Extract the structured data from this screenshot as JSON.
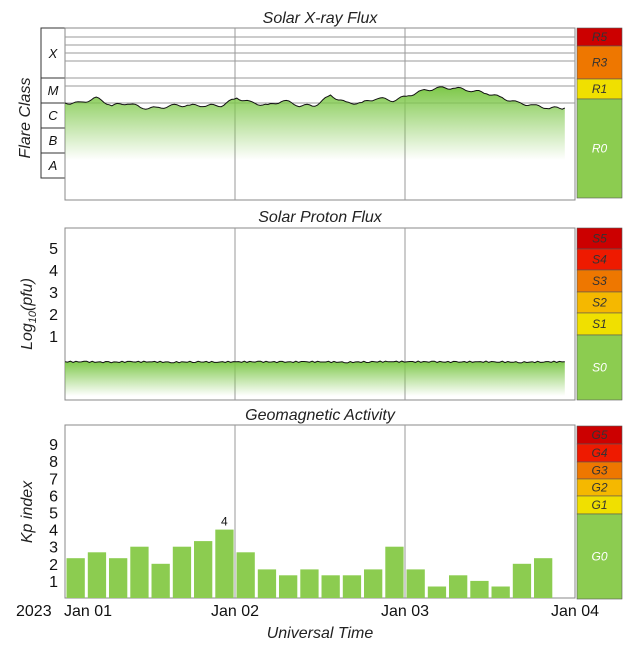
{
  "xray": {
    "title": "Solar X-ray Flux",
    "ylabel": "Flare Class",
    "classes": [
      "X",
      "M",
      "C",
      "B",
      "A"
    ],
    "scale": [
      {
        "label": "R5",
        "color": "#cc0000"
      },
      {
        "label": "R3",
        "color": "#ee7700"
      },
      {
        "label": "R1",
        "color": "#f0e000"
      },
      {
        "label": "R0",
        "color": "#8ccc50"
      }
    ]
  },
  "proton": {
    "title": "Solar Proton Flux",
    "ylabel_main": "Log",
    "ylabel_sub": "10",
    "ylabel_tail": "(pfu)",
    "ticks": [
      "5",
      "4",
      "3",
      "2",
      "1"
    ],
    "scale": [
      {
        "label": "S5",
        "color": "#cc0000"
      },
      {
        "label": "S4",
        "color": "#ee1a00"
      },
      {
        "label": "S3",
        "color": "#ee7700"
      },
      {
        "label": "S2",
        "color": "#f5b800"
      },
      {
        "label": "S1",
        "color": "#f0e000"
      },
      {
        "label": "S0",
        "color": "#8ccc50"
      }
    ]
  },
  "geomag": {
    "title": "Geomagnetic Activity",
    "ylabel": "Kp index",
    "ticks": [
      "9",
      "8",
      "7",
      "6",
      "5",
      "4",
      "3",
      "2",
      "1"
    ],
    "scale": [
      {
        "label": "G5",
        "color": "#cc0000"
      },
      {
        "label": "G4",
        "color": "#ee1a00"
      },
      {
        "label": "G3",
        "color": "#ee7700"
      },
      {
        "label": "G2",
        "color": "#f5b800"
      },
      {
        "label": "G1",
        "color": "#f0e000"
      },
      {
        "label": "G0",
        "color": "#8ccc50"
      }
    ]
  },
  "xaxis": {
    "year": "2023",
    "ticks": [
      "Jan 01",
      "Jan 02",
      "Jan 03",
      "Jan 04"
    ],
    "label": "Universal Time"
  },
  "chart_data": [
    {
      "type": "area",
      "title": "Solar X-ray Flux",
      "ylabel": "Flare Class",
      "yscale": "log",
      "x_range": [
        "2023-01-01",
        "2023-01-03T23:00"
      ],
      "series": [
        {
          "values": [
            2.0,
            2.0,
            2.2,
            1.9,
            2.0,
            1.8,
            1.8,
            1.9,
            1.9,
            1.9,
            1.9,
            2.2,
            2.0,
            1.9,
            2.1,
            1.9,
            1.9,
            2.3,
            2.0,
            2.0,
            2.2,
            2.1,
            2.3,
            2.5,
            2.6,
            2.6,
            2.5,
            2.4,
            2.2,
            2.0,
            1.9,
            1.8,
            1.8
          ]
        }
      ]
    },
    {
      "type": "area",
      "title": "Solar Proton Flux",
      "ylabel": "Log10(pfu)",
      "x_range": [
        "2023-01-01",
        "2023-01-03T23:00"
      ],
      "series": [
        {
          "values": [
            -0.9,
            -0.9,
            -0.92,
            -0.9,
            -0.9,
            -0.92,
            -0.9,
            -0.91,
            -0.9,
            -0.9,
            -0.91,
            -0.9,
            -0.9,
            -0.92,
            -0.9,
            -0.89,
            -0.9,
            -0.9,
            -0.91,
            -0.9,
            -0.9,
            -0.92,
            -0.9,
            -0.9
          ]
        }
      ]
    },
    {
      "type": "bar",
      "title": "Geomagnetic Activity",
      "ylabel": "Kp index",
      "xlabel": "Universal Time",
      "ylim": [
        0,
        10
      ],
      "values": [
        2.33,
        2.67,
        2.33,
        3.0,
        2.0,
        3.0,
        3.33,
        4.0,
        2.67,
        1.67,
        1.33,
        1.67,
        1.33,
        1.33,
        1.67,
        3.0,
        1.67,
        0.67,
        1.33,
        1.0,
        0.67,
        2.0,
        2.33
      ],
      "annotations": [
        {
          "bar_index": 7,
          "text": "4"
        }
      ]
    }
  ]
}
